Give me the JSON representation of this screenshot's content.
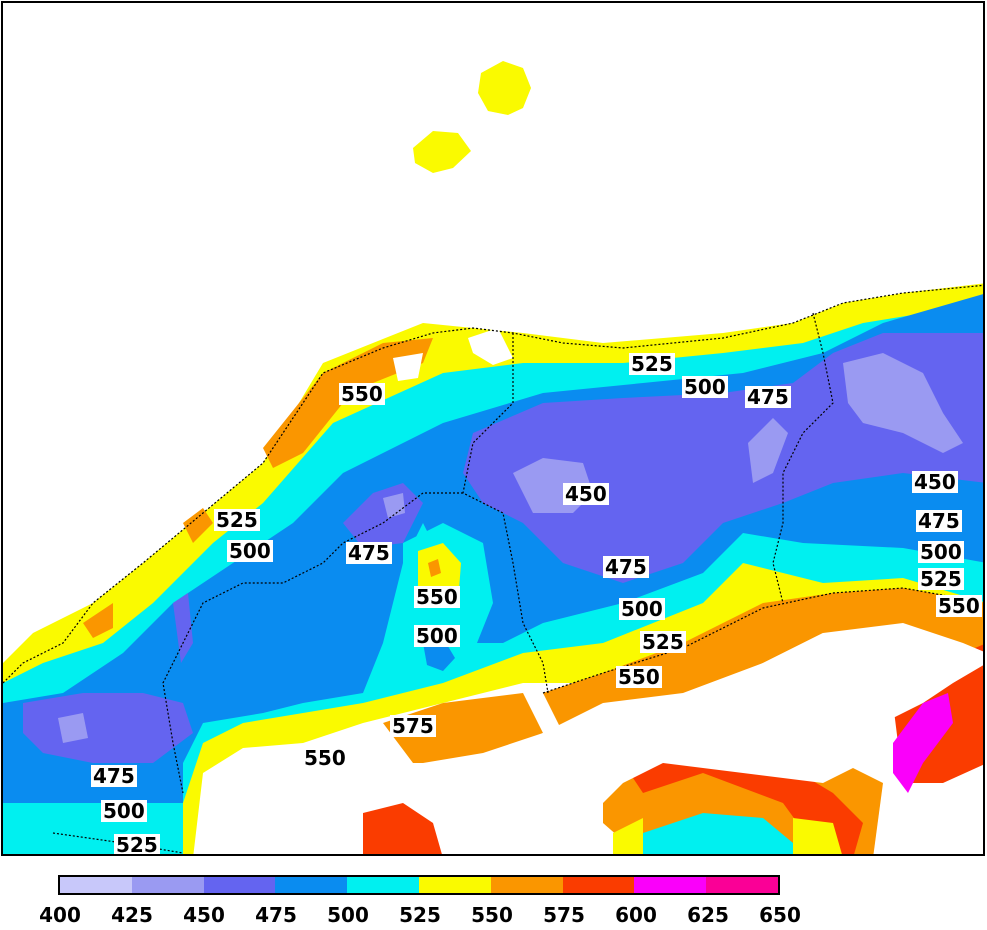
{
  "legend": {
    "ticks": [
      "400",
      "425",
      "450",
      "475",
      "500",
      "525",
      "550",
      "575",
      "600",
      "625",
      "650"
    ],
    "colors": [
      "#c8c8fa",
      "#9a9af2",
      "#6464f0",
      "#0a8cf0",
      "#00f0f0",
      "#fafa00",
      "#fa9600",
      "#fa3c00",
      "#fa00fa",
      "#fa0096"
    ]
  },
  "contour_labels": [
    "550",
    "525",
    "500",
    "475",
    "525",
    "500",
    "475",
    "450",
    "450",
    "475",
    "500",
    "525",
    "550",
    "550",
    "500",
    "475",
    "500",
    "525",
    "550",
    "575",
    "550",
    "475",
    "500",
    "525"
  ]
}
